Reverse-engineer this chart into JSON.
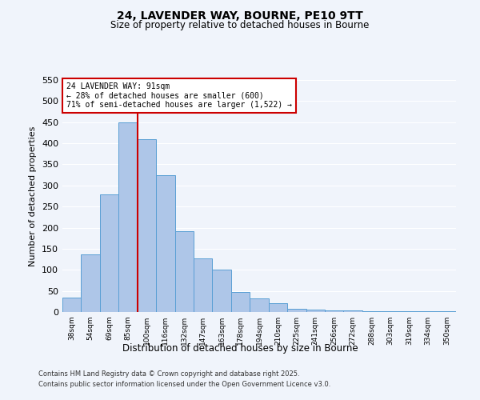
{
  "title_line1": "24, LAVENDER WAY, BOURNE, PE10 9TT",
  "title_line2": "Size of property relative to detached houses in Bourne",
  "xlabel": "Distribution of detached houses by size in Bourne",
  "ylabel": "Number of detached properties",
  "bar_labels": [
    "38sqm",
    "54sqm",
    "69sqm",
    "85sqm",
    "100sqm",
    "116sqm",
    "132sqm",
    "147sqm",
    "163sqm",
    "178sqm",
    "194sqm",
    "210sqm",
    "225sqm",
    "241sqm",
    "256sqm",
    "272sqm",
    "288sqm",
    "303sqm",
    "319sqm",
    "334sqm",
    "350sqm"
  ],
  "bar_values": [
    35,
    137,
    278,
    450,
    410,
    325,
    192,
    127,
    101,
    47,
    32,
    20,
    7,
    5,
    4,
    3,
    2,
    1,
    1,
    1,
    2
  ],
  "bar_color": "#aec6e8",
  "bar_edge_color": "#5a9fd4",
  "vline_x": 3.5,
  "vline_color": "#cc0000",
  "ylim": [
    0,
    550
  ],
  "yticks": [
    0,
    50,
    100,
    150,
    200,
    250,
    300,
    350,
    400,
    450,
    500,
    550
  ],
  "annotation_title": "24 LAVENDER WAY: 91sqm",
  "annotation_line2": "← 28% of detached houses are smaller (600)",
  "annotation_line3": "71% of semi-detached houses are larger (1,522) →",
  "annotation_box_color": "#ffffff",
  "annotation_box_edge": "#cc0000",
  "footnote1": "Contains HM Land Registry data © Crown copyright and database right 2025.",
  "footnote2": "Contains public sector information licensed under the Open Government Licence v3.0.",
  "bg_color": "#f0f4fb",
  "grid_color": "#ffffff"
}
